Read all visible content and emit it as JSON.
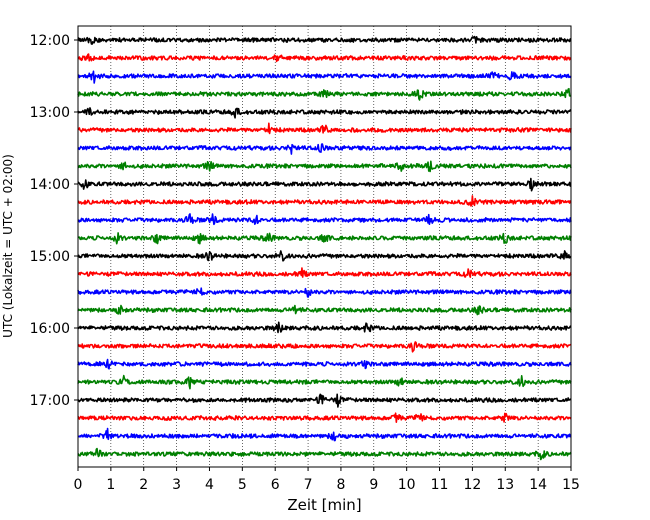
{
  "chart_data": {
    "type": "line",
    "title": "",
    "xlabel": "Zeit  [min]",
    "ylabel": "UTC (Lokalzeit = UTC + 02:00)",
    "xlim": [
      0,
      15
    ],
    "x_ticks": [
      0,
      1,
      2,
      3,
      4,
      5,
      6,
      7,
      8,
      9,
      10,
      11,
      12,
      13,
      14,
      15
    ],
    "x_tick_labels": [
      "0",
      "1",
      "2",
      "3",
      "4",
      "5",
      "6",
      "7",
      "8",
      "9",
      "10",
      "11",
      "12",
      "13",
      "14",
      "15"
    ],
    "grid": "vertical-dotted",
    "legend": "none",
    "y_tick_labels": [
      "12:00",
      "13:00",
      "14:00",
      "15:00",
      "16:00",
      "17:00"
    ],
    "trace_colors": [
      "#000000",
      "#ff0000",
      "#0000ff",
      "#008000"
    ],
    "trace_start_times": [
      "12:00",
      "12:15",
      "12:30",
      "12:45",
      "13:00",
      "13:15",
      "13:30",
      "13:45",
      "14:00",
      "14:15",
      "14:30",
      "14:45",
      "15:00",
      "15:15",
      "15:30",
      "15:45",
      "16:00",
      "16:15",
      "16:30",
      "16:45",
      "17:00",
      "17:15",
      "17:30",
      "17:45"
    ],
    "events_min": [
      [
        0.4,
        12.1
      ],
      [
        0.3,
        6.1
      ],
      [
        0.5,
        12.6,
        13.2
      ],
      [
        7.5,
        10.4,
        14.9
      ],
      [
        0.3,
        4.8
      ],
      [
        5.8,
        7.5
      ],
      [
        6.5,
        7.4
      ],
      [
        1.4,
        4.0,
        9.8,
        10.7
      ],
      [
        0.2,
        13.8
      ],
      [
        12.0
      ],
      [
        3.4,
        4.1,
        5.4,
        10.7
      ],
      [
        1.2,
        2.4,
        3.7,
        5.8,
        7.5,
        13.0
      ],
      [
        4.0,
        6.2,
        14.8
      ],
      [
        6.8,
        11.9
      ],
      [
        3.7,
        7.0
      ],
      [
        1.3,
        6.6,
        12.2
      ],
      [
        6.1,
        8.8
      ],
      [
        10.2
      ],
      [
        0.9,
        8.7
      ],
      [
        1.4,
        3.4,
        9.8,
        13.5
      ],
      [
        7.4,
        7.9
      ],
      [
        9.7,
        10.4,
        13.0
      ],
      [
        0.9,
        7.8
      ],
      [
        0.6,
        14.1
      ]
    ]
  }
}
